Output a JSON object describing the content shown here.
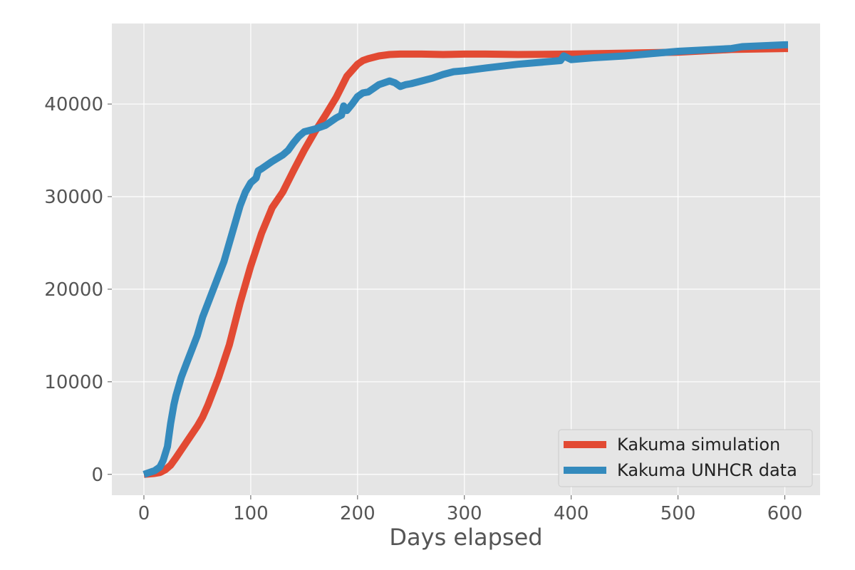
{
  "chart_data": {
    "type": "line",
    "title": "",
    "xlabel": "Days elapsed",
    "ylabel": "",
    "xlim": [
      -30,
      633
    ],
    "ylim": [
      -2250,
      48700
    ],
    "xticks": [
      0,
      100,
      200,
      300,
      400,
      500,
      600
    ],
    "yticks": [
      0,
      10000,
      20000,
      30000,
      40000
    ],
    "xtick_labels": [
      "0",
      "100",
      "200",
      "300",
      "400",
      "500",
      "600"
    ],
    "ytick_labels": [
      "0",
      "10000",
      "20000",
      "30000",
      "40000"
    ],
    "grid": true,
    "legend_position": "lower-right",
    "background": "#e5e5e5",
    "series": [
      {
        "name": "Kakuma simulation",
        "color": "#e24a33",
        "x": [
          0,
          10,
          15,
          20,
          25,
          30,
          40,
          50,
          55,
          60,
          70,
          80,
          90,
          100,
          110,
          120,
          130,
          140,
          150,
          160,
          170,
          180,
          190,
          200,
          205,
          210,
          220,
          230,
          240,
          250,
          260,
          280,
          300,
          320,
          350,
          400,
          450,
          500,
          550,
          600,
          603
        ],
        "y": [
          0,
          100,
          200,
          500,
          1000,
          1800,
          3500,
          5200,
          6200,
          7500,
          10500,
          14000,
          18500,
          22500,
          26000,
          28800,
          30500,
          32800,
          35000,
          37000,
          38800,
          40700,
          43000,
          44300,
          44700,
          44900,
          45200,
          45350,
          45400,
          45400,
          45400,
          45350,
          45400,
          45400,
          45350,
          45400,
          45500,
          45600,
          45900,
          46000,
          46000
        ]
      },
      {
        "name": "Kakuma UNHCR data",
        "color": "#348abd",
        "x": [
          0,
          5,
          10,
          15,
          18,
          22,
          25,
          28,
          30,
          35,
          40,
          45,
          50,
          55,
          60,
          65,
          70,
          75,
          80,
          85,
          90,
          95,
          100,
          105,
          107,
          110,
          120,
          130,
          135,
          140,
          145,
          150,
          160,
          170,
          180,
          185,
          187,
          190,
          195,
          200,
          205,
          210,
          215,
          220,
          230,
          235,
          240,
          245,
          250,
          260,
          270,
          280,
          290,
          300,
          320,
          350,
          380,
          390,
          393,
          400,
          420,
          450,
          500,
          550,
          560,
          600,
          603
        ],
        "y": [
          0,
          200,
          400,
          800,
          1500,
          3000,
          5500,
          7500,
          8500,
          10500,
          12000,
          13500,
          15000,
          17000,
          18500,
          20000,
          21500,
          23000,
          25000,
          27000,
          29000,
          30500,
          31500,
          32000,
          32800,
          33000,
          33800,
          34500,
          35000,
          35800,
          36500,
          37000,
          37300,
          37700,
          38500,
          38800,
          39800,
          39300,
          40000,
          40800,
          41200,
          41300,
          41700,
          42100,
          42500,
          42300,
          41900,
          42100,
          42200,
          42500,
          42800,
          43200,
          43500,
          43600,
          43900,
          44300,
          44600,
          44700,
          45200,
          44800,
          45000,
          45200,
          45700,
          46000,
          46200,
          46400,
          46400
        ]
      }
    ]
  }
}
